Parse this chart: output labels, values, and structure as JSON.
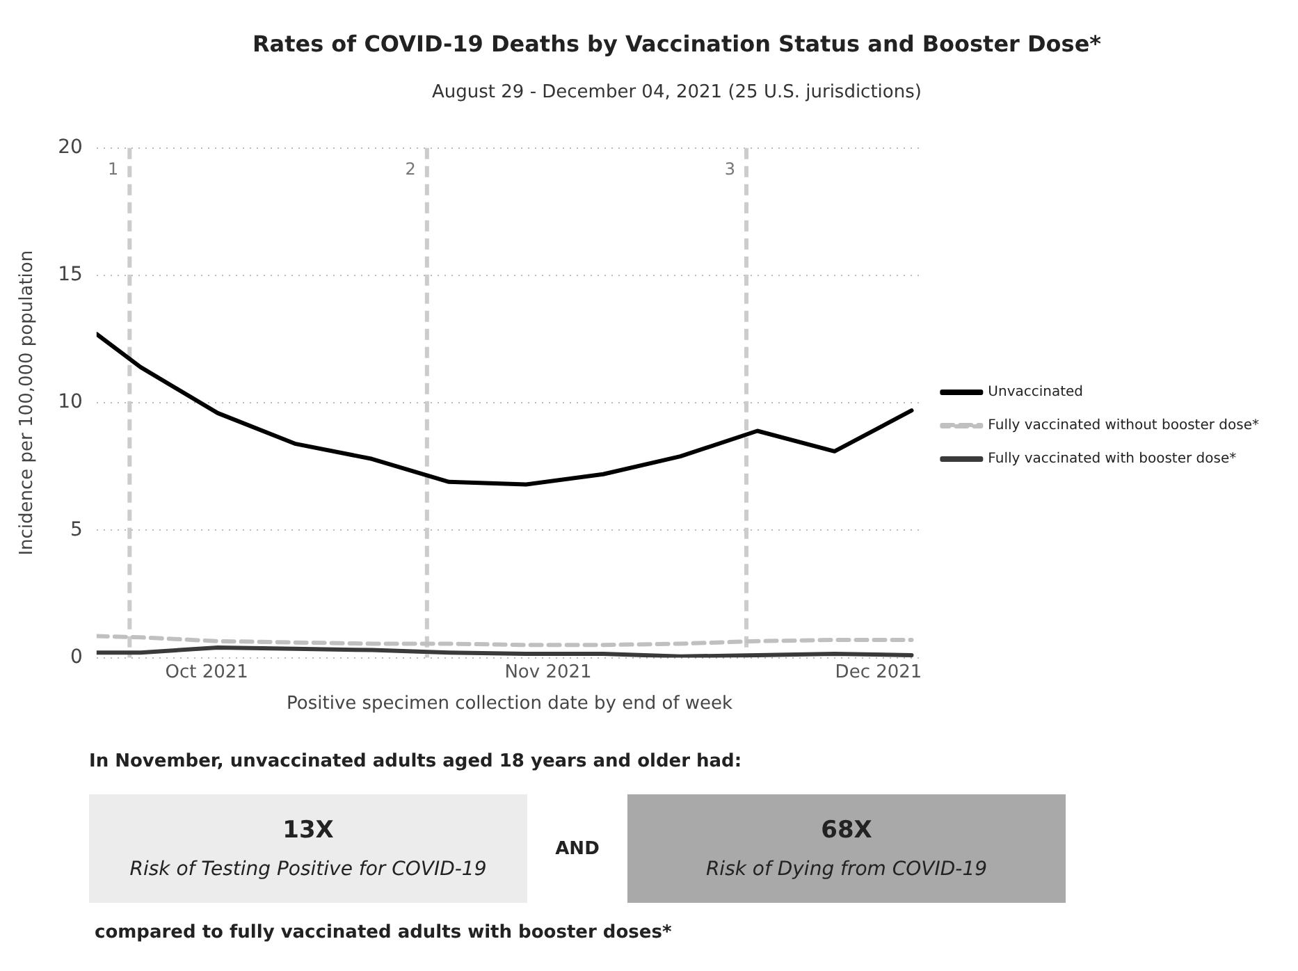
{
  "chart_data": {
    "type": "line",
    "title": "Rates of COVID-19 Deaths by Vaccination Status and Booster Dose*",
    "subtitle": "August 29 - December 04, 2021 (25 U.S. jurisdictions)",
    "xlabel": "Positive specimen collection date by end of week",
    "ylabel": "Incidence per 100,000 population",
    "x": [
      "2021-09-21",
      "2021-09-25",
      "2021-10-02",
      "2021-10-09",
      "2021-10-16",
      "2021-10-23",
      "2021-10-30",
      "2021-11-06",
      "2021-11-13",
      "2021-11-20",
      "2021-11-27",
      "2021-12-04"
    ],
    "series": [
      {
        "name": "Unvaccinated",
        "color": "#000000",
        "line_style": "solid",
        "values": [
          12.7,
          11.4,
          9.6,
          8.4,
          7.8,
          6.9,
          6.8,
          7.2,
          7.9,
          8.9,
          8.1,
          9.7
        ]
      },
      {
        "name": "Fully vaccinated without booster dose*",
        "color": "#c0c0c0",
        "line_style": "dashed",
        "values": [
          0.85,
          0.8,
          0.65,
          0.6,
          0.55,
          0.55,
          0.5,
          0.5,
          0.55,
          0.65,
          0.7,
          0.7
        ]
      },
      {
        "name": "Fully vaccinated with booster dose*",
        "color": "#3a3a3a",
        "line_style": "solid",
        "values": [
          0.2,
          0.2,
          0.4,
          0.35,
          0.3,
          0.2,
          0.15,
          0.15,
          0.05,
          0.1,
          0.15,
          0.1
        ]
      }
    ],
    "xlim": [
      "2021-09-21",
      "2021-12-05"
    ],
    "xticks": [
      {
        "value": "2021-10-01",
        "label": "Oct 2021"
      },
      {
        "value": "2021-11-01",
        "label": "Nov 2021"
      },
      {
        "value": "2021-12-01",
        "label": "Dec 2021"
      }
    ],
    "ylim": [
      0,
      20
    ],
    "yticks": [
      0,
      5,
      10,
      15,
      20
    ],
    "grid": "y",
    "legend": "right",
    "marker": "none",
    "ref_lines": [
      {
        "axis": "x",
        "value": "2021-09-24",
        "label": "1",
        "color": "#cccccc",
        "line_style": "dashed"
      },
      {
        "axis": "x",
        "value": "2021-10-21",
        "label": "2",
        "color": "#cccccc",
        "line_style": "dashed"
      },
      {
        "axis": "x",
        "value": "2021-11-19",
        "label": "3",
        "color": "#cccccc",
        "line_style": "dashed"
      }
    ],
    "annotations": [
      "In November, unvaccinated adults aged 18 years and older had:",
      "13X",
      "Risk of Testing Positive for COVID-19",
      "AND",
      "68X",
      "Risk of Dying from COVID-19",
      "compared to fully vaccinated adults with booster doses*"
    ]
  }
}
